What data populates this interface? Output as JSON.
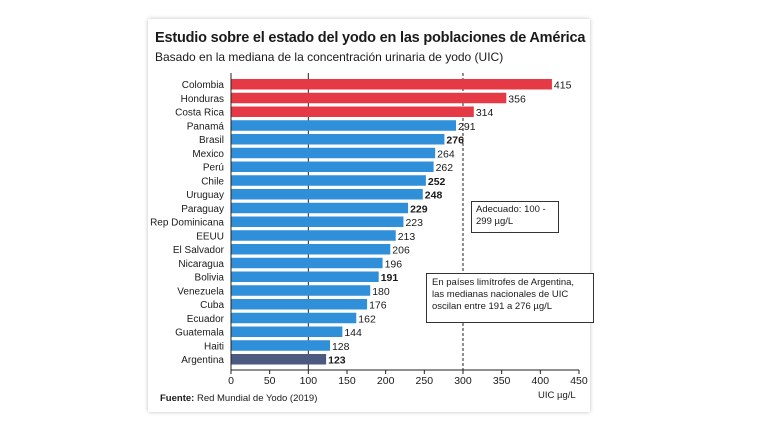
{
  "title": "Estudio sobre el estado del yodo en las poblaciones de América",
  "subtitle": "Basado en la mediana de la concentración urinaria de yodo (UIC)",
  "source_label": "Fuente:",
  "source_text": "Red Mundial de Yodo (2019)",
  "x_unit": "UIC µg/L",
  "note_adequate": "Adecuado: 100 - 299 µg/L",
  "note_neighbors": "En países limítrofes de Argentina, las medianas nacionales de UIC oscilan entre 191 a 276 µg/L",
  "colors": {
    "red": "#e63946",
    "blue": "#2f8fd8",
    "argentina": "#4d5a80"
  },
  "chart_data": {
    "type": "bar",
    "orientation": "horizontal",
    "title": "Estudio sobre el estado del yodo en las poblaciones de América",
    "subtitle": "Basado en la mediana de la concentración urinaria de yodo (UIC)",
    "xlabel": "UIC µg/L",
    "xlim": [
      0,
      450
    ],
    "x_ticks": [
      0,
      50,
      100,
      150,
      200,
      250,
      300,
      350,
      400,
      450
    ],
    "reference_lines": [
      100,
      300
    ],
    "categories": [
      "Colombia",
      "Honduras",
      "Costa Rica",
      "Panamá",
      "Brasil",
      "Mexico",
      "Perú",
      "Chile",
      "Uruguay",
      "Paraguay",
      "Rep Dominicana",
      "EEUU",
      "El Salvador",
      "Nicaragua",
      "Bolivia",
      "Venezuela",
      "Cuba",
      "Ecuador",
      "Guatemala",
      "Haiti",
      "Argentina"
    ],
    "values": [
      415,
      356,
      314,
      291,
      276,
      264,
      262,
      252,
      248,
      229,
      223,
      213,
      206,
      196,
      191,
      180,
      176,
      162,
      144,
      128,
      123
    ],
    "bar_colors": [
      "red",
      "red",
      "red",
      "blue",
      "blue",
      "blue",
      "blue",
      "blue",
      "blue",
      "blue",
      "blue",
      "blue",
      "blue",
      "blue",
      "blue",
      "blue",
      "blue",
      "blue",
      "blue",
      "blue",
      "argentina"
    ],
    "bold_values": [
      276,
      252,
      248,
      229,
      191,
      123
    ]
  }
}
